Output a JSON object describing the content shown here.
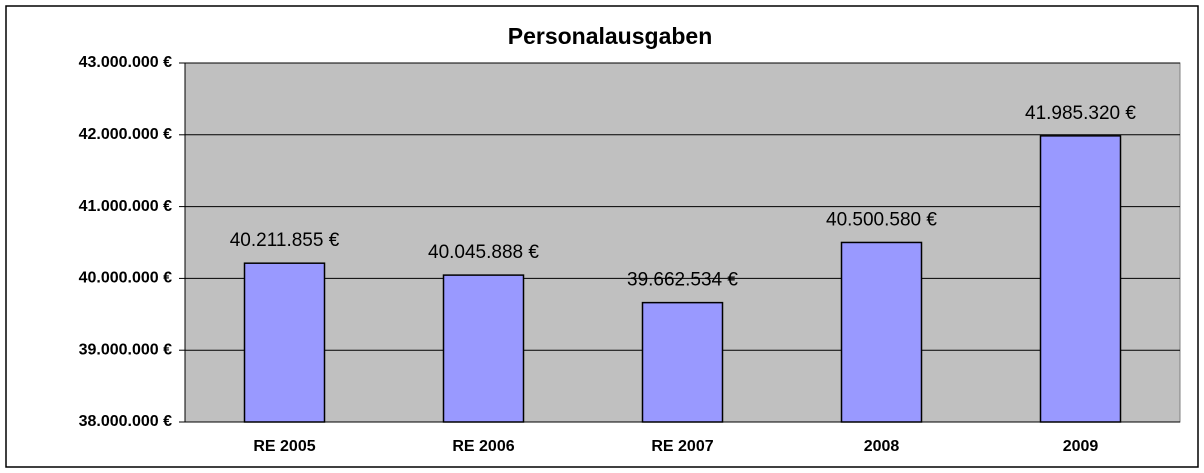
{
  "chart_data": {
    "type": "bar",
    "title": "Personalausgaben",
    "categories": [
      "RE 2005",
      "RE 2006",
      "RE 2007",
      "2008",
      "2009"
    ],
    "values": [
      40211855,
      40045888,
      39662534,
      40500580,
      41985320
    ],
    "value_labels": [
      "40.211.855 €",
      "40.045.888 €",
      "39.662.534 €",
      "40.500.580 €",
      "41.985.320 €"
    ],
    "color": "#9999ff",
    "ylim": [
      38000000,
      43000000
    ],
    "yticks": [
      {
        "value": 38000000,
        "label": "38.000.000 €"
      },
      {
        "value": 39000000,
        "label": "39.000.000 €"
      },
      {
        "value": 40000000,
        "label": "40.000.000 €"
      },
      {
        "value": 41000000,
        "label": "41.000.000 €"
      },
      {
        "value": 42000000,
        "label": "42.000.000 €"
      },
      {
        "value": 43000000,
        "label": "43.000.000 €"
      }
    ],
    "grid": true
  }
}
